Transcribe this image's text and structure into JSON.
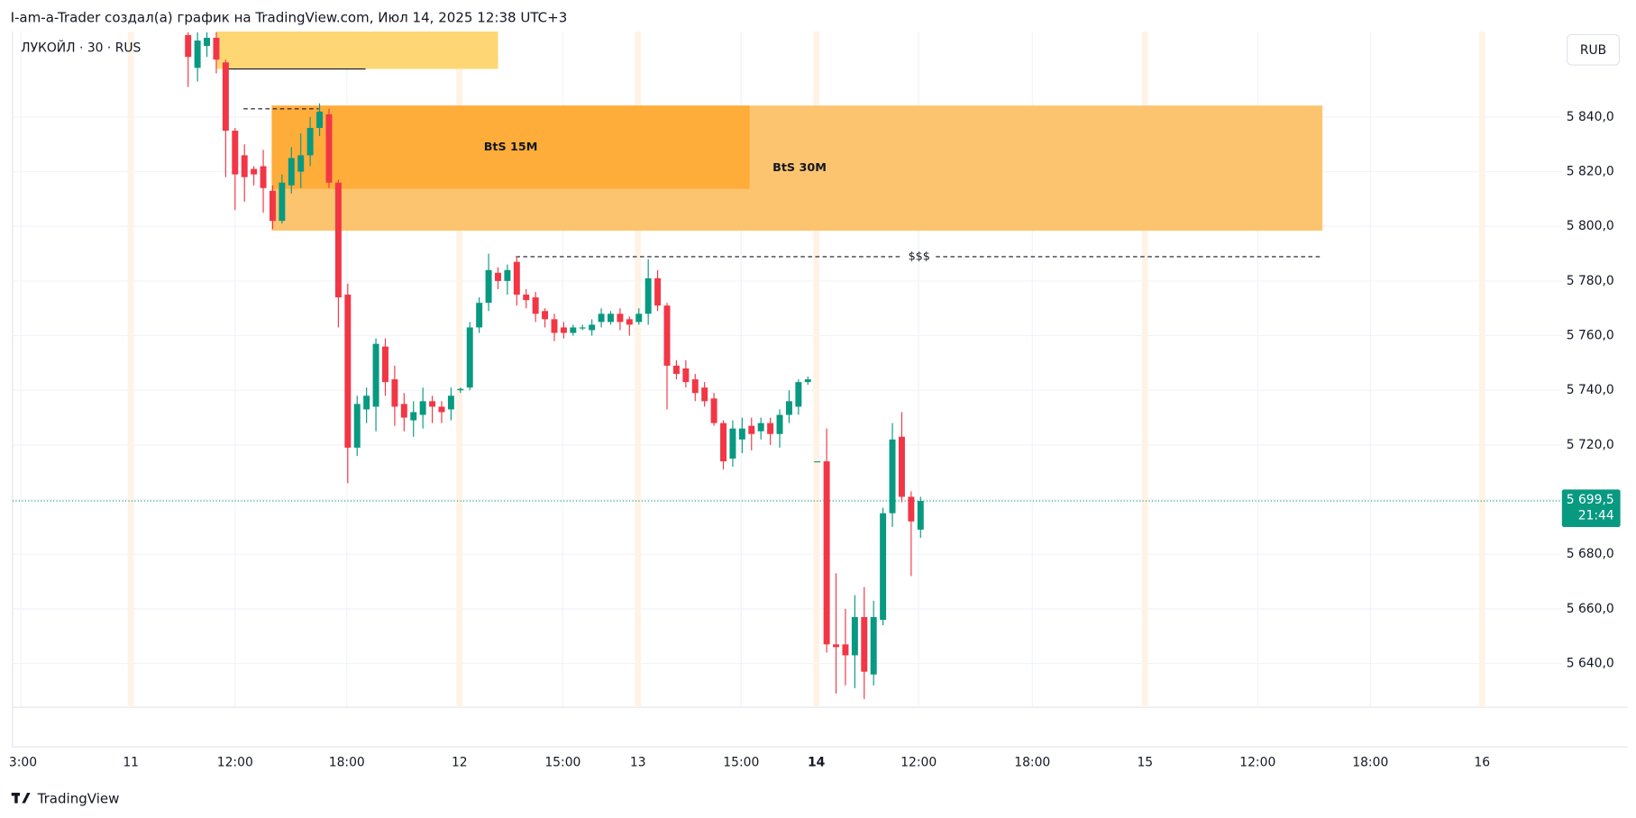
{
  "chart_data": {
    "type": "candlestick",
    "title": "I-am-a-Trader создал(а) график на TradingView.com, Июл 14, 2025 12:38 UTC+3",
    "subtitle": "ЛУКОЙЛ · 30 · RUS",
    "currency": "RUB",
    "brand": "TradingView",
    "up_color": "#089981",
    "down_color": "#f23645",
    "grid": true,
    "x": [
      0,
      1,
      2,
      3,
      4,
      5,
      6,
      7,
      8,
      9,
      10,
      11,
      12,
      13,
      14,
      15,
      16,
      17,
      18,
      19,
      20,
      21,
      22,
      23,
      24,
      25,
      26,
      27,
      28,
      29,
      30,
      31,
      32,
      33,
      34,
      35,
      36,
      37,
      38,
      39,
      40,
      41,
      42,
      43,
      44,
      45,
      46,
      47,
      48,
      49,
      50,
      51,
      52,
      53,
      54,
      55,
      56,
      57,
      58,
      59,
      60,
      61,
      62,
      63,
      64,
      65,
      66,
      67,
      68,
      69,
      70,
      71,
      72,
      73,
      74,
      75,
      76,
      77,
      78
    ],
    "open": [
      5870,
      5858,
      5866,
      5869,
      5860,
      5835,
      5826,
      5821,
      5822,
      5813,
      5802,
      5815,
      5820,
      5826,
      5836,
      5841,
      5816,
      5775,
      5719,
      5733,
      5734,
      5756,
      5744,
      5735,
      5729,
      5731,
      5736,
      5734,
      5733,
      5740,
      5741,
      5763,
      5772,
      5783,
      5780,
      5787,
      5775,
      5774,
      5769,
      5766,
      5763,
      5761,
      5763,
      5762,
      5765,
      5765,
      5768,
      5766,
      5765,
      5768,
      5781,
      5771,
      5749,
      5748,
      5744,
      5741,
      5737,
      5728,
      5715,
      5722,
      5727,
      5725,
      5728,
      5724,
      5731,
      5734,
      5743,
      5714,
      5714,
      5647,
      5647,
      5643,
      5657,
      5636,
      5656,
      5695,
      5723,
      5701,
      5689
    ],
    "high": [
      5871,
      5871,
      5871,
      5871,
      5861,
      5836,
      5830,
      5822,
      5828,
      5815,
      5819,
      5829,
      5834,
      5840,
      5845,
      5843,
      5817,
      5779,
      5738,
      5741,
      5759,
      5759,
      5749,
      5739,
      5736,
      5741,
      5738,
      5736,
      5741,
      5741,
      5765,
      5774,
      5790,
      5785,
      5786,
      5789,
      5777,
      5776,
      5770,
      5768,
      5765,
      5764,
      5764,
      5766,
      5770,
      5769,
      5770,
      5767,
      5770,
      5788,
      5784,
      5772,
      5751,
      5751,
      5746,
      5743,
      5739,
      5729,
      5729,
      5730,
      5730,
      5730,
      5730,
      5733,
      5740,
      5744,
      5745,
      5714,
      5726,
      5673,
      5660,
      5665,
      5668,
      5663,
      5697,
      5728,
      5732,
      5703,
      5701
    ],
    "low": [
      5851,
      5853,
      5862,
      5856,
      5818,
      5806,
      5809,
      5815,
      5805,
      5799,
      5801,
      5812,
      5814,
      5822,
      5833,
      5814,
      5763,
      5706,
      5716,
      5728,
      5725,
      5738,
      5727,
      5725,
      5723,
      5726,
      5728,
      5728,
      5729,
      5739,
      5740,
      5761,
      5769,
      5777,
      5775,
      5771,
      5770,
      5765,
      5763,
      5758,
      5759,
      5760,
      5762,
      5760,
      5763,
      5764,
      5762,
      5760,
      5764,
      5764,
      5769,
      5733,
      5744,
      5741,
      5736,
      5734,
      5727,
      5711,
      5712,
      5717,
      5718,
      5722,
      5720,
      5719,
      5728,
      5731,
      5742,
      5714,
      5644,
      5629,
      5632,
      5631,
      5627,
      5632,
      5654,
      5690,
      5699,
      5672,
      5686
    ],
    "close": [
      5862,
      5868,
      5869,
      5861,
      5835,
      5819,
      5818,
      5819,
      5814,
      5802,
      5816,
      5825,
      5826,
      5836,
      5842,
      5816,
      5774,
      5719,
      5735,
      5738,
      5757,
      5743,
      5734,
      5730,
      5732,
      5736,
      5734,
      5732,
      5738,
      5740.5,
      5763,
      5772,
      5784,
      5780,
      5784,
      5775,
      5773,
      5768,
      5766,
      5761,
      5761,
      5763,
      5763,
      5764,
      5768,
      5768,
      5765,
      5764,
      5768,
      5781,
      5771,
      5749,
      5746,
      5743,
      5739,
      5736,
      5728,
      5714,
      5726,
      5726,
      5724,
      5728,
      5724,
      5731,
      5736,
      5743,
      5744,
      5714,
      5647,
      5646,
      5643,
      5657,
      5637,
      5657,
      5695,
      5722,
      5701,
      5692,
      5699.5
    ],
    "xlim": [
      -18.7,
      146.3
    ],
    "ylim": [
      5624,
      5871.3
    ],
    "xticks": [
      {
        "value": -17.8,
        "label": "3:00"
      },
      {
        "value": -6.1,
        "label": "11"
      },
      {
        "value": 5,
        "label": "12:00"
      },
      {
        "value": 16.9,
        "label": "18:00"
      },
      {
        "value": 28.9,
        "label": "12"
      },
      {
        "value": 39.9,
        "label": "15:00"
      },
      {
        "value": 47.9,
        "label": "13"
      },
      {
        "value": 58.9,
        "label": "15:00"
      },
      {
        "value": 66.9,
        "label": "14"
      },
      {
        "value": 77.8,
        "label": "12:00"
      },
      {
        "value": 89.9,
        "label": "18:00"
      },
      {
        "value": 101.9,
        "label": "15"
      },
      {
        "value": 113.9,
        "label": "12:00"
      },
      {
        "value": 125.9,
        "label": "18:00"
      },
      {
        "value": 137.8,
        "label": "16"
      }
    ],
    "yticks": [
      {
        "value": 5640,
        "label": "5 640,0"
      },
      {
        "value": 5660,
        "label": "5 660,0"
      },
      {
        "value": 5680,
        "label": "5 680,0"
      },
      {
        "value": 5700,
        "label": "5 700,0"
      },
      {
        "value": 5720,
        "label": "5 720,0"
      },
      {
        "value": 5740,
        "label": "5 740,0"
      },
      {
        "value": 5760,
        "label": "5 760,0"
      },
      {
        "value": 5780,
        "label": "5 780,0"
      },
      {
        "value": 5800,
        "label": "5 800,0"
      },
      {
        "value": 5820,
        "label": "5 820,0"
      },
      {
        "value": 5840,
        "label": "5 840,0"
      }
    ],
    "zones": [
      {
        "x": [
          3,
          33
        ],
        "y": [
          5857.6,
          5871.3
        ],
        "color": "#fed774"
      },
      {
        "label": "BtS 30M",
        "x": [
          8.9,
          120.8
        ],
        "y": [
          5798.4,
          5844.2
        ],
        "color": "#fdc46f"
      },
      {
        "label": "BtS 15M",
        "x": [
          8.9,
          59.8
        ],
        "y": [
          5813.7,
          5844.2
        ],
        "color": "#ffad3a"
      }
    ],
    "lines": [
      {
        "x": [
          3.9,
          18.9
        ],
        "y": 5857.6
      },
      {
        "x": [
          5.9,
          13.9
        ],
        "y": 5843
      },
      {
        "label": "$$$",
        "x": [
          34.9,
          120.8
        ],
        "y": 5788.9
      }
    ],
    "last_price": {
      "value": 5699.5,
      "label": "5 699,5",
      "time": "21:44",
      "color": "#089981"
    }
  }
}
